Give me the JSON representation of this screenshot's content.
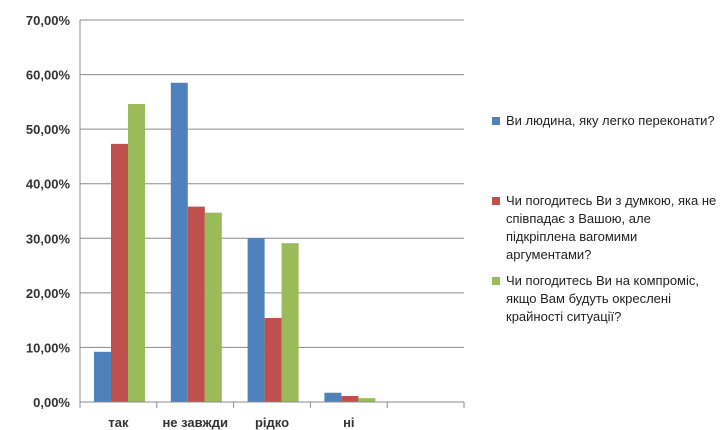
{
  "chart_data": {
    "type": "bar",
    "categories": [
      "так",
      "не завжди",
      "рідко",
      "ні",
      ""
    ],
    "series": [
      {
        "name": "Ви людина, яку легко переконати?",
        "color": "#4f81bd",
        "values": [
          9.2,
          58.5,
          30.0,
          1.7,
          0
        ]
      },
      {
        "name": "Чи погодитесь Ви з думкою, яка не співпадає з Вашою, але підкріплена вагомими аргументами?",
        "color": "#c0504d",
        "values": [
          47.3,
          35.8,
          15.4,
          1.1,
          0
        ]
      },
      {
        "name": "Чи погодитесь Ви на компроміс, якщо Вам будуть окреслені крайності ситуації?",
        "color": "#9bbb59",
        "values": [
          54.6,
          34.7,
          29.1,
          0.7,
          0
        ]
      }
    ],
    "y_ticks": [
      "0,00%",
      "10,00%",
      "20,00%",
      "30,00%",
      "40,00%",
      "50,00%",
      "60,00%",
      "70,00%"
    ],
    "ylim": [
      0,
      70
    ],
    "title": "",
    "xlabel": "",
    "ylabel": "",
    "grid": true,
    "legend_position": "right"
  }
}
